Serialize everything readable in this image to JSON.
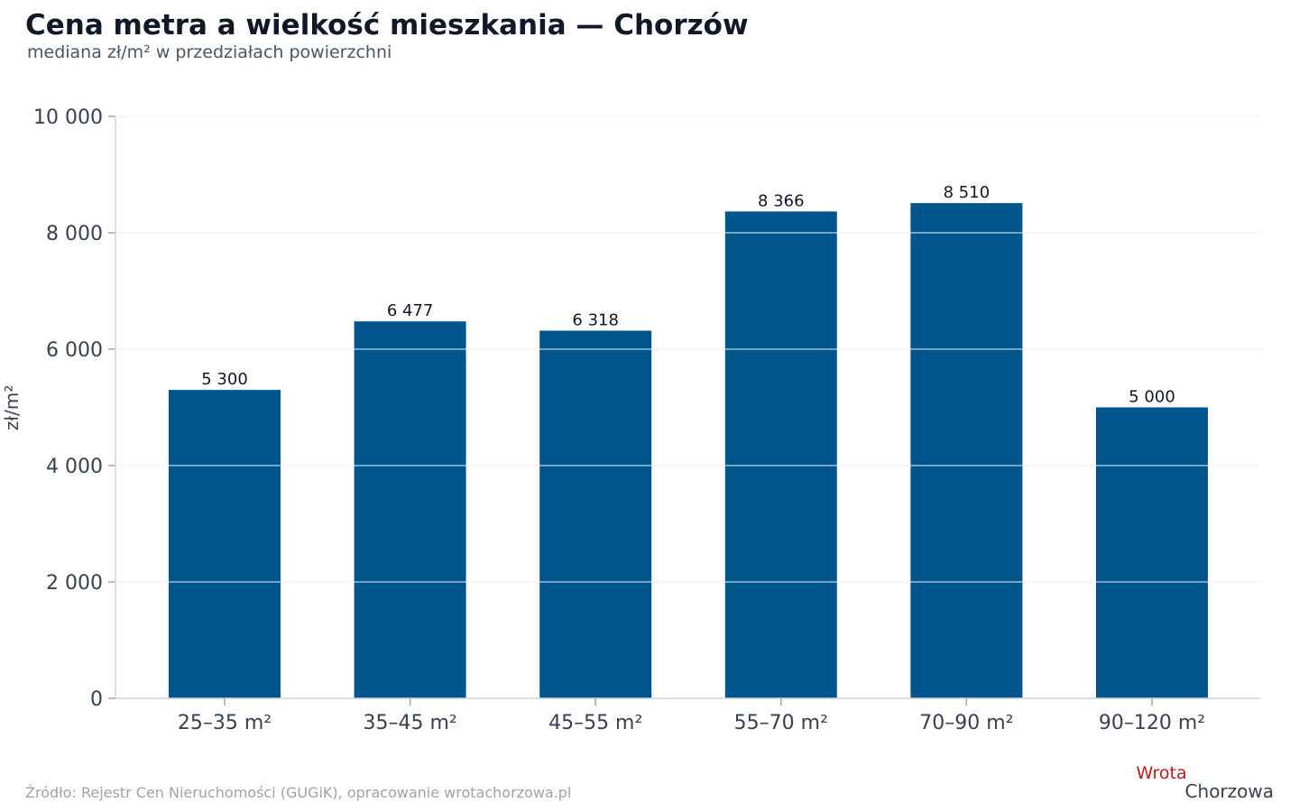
{
  "chart_data": {
    "type": "bar",
    "title": "Cena metra a wielkość mieszkania — Chorzów",
    "subtitle": "mediana zł/m² w przedziałach powierzchni",
    "xlabel": "",
    "ylabel": "zł/m²",
    "categories": [
      "25–35 m²",
      "35–45 m²",
      "45–55 m²",
      "55–70 m²",
      "70–90 m²",
      "90–120 m²"
    ],
    "values": [
      5300,
      6477,
      6318,
      8366,
      8510,
      5000
    ],
    "value_labels": [
      "5 300",
      "6 477",
      "6 318",
      "8 366",
      "8 510",
      "5 000"
    ],
    "ylim": [
      0,
      10000
    ],
    "yticks": [
      0,
      2000,
      4000,
      6000,
      8000,
      10000
    ],
    "ytick_labels": [
      "0",
      "2 000",
      "4 000",
      "6 000",
      "8 000",
      "10 000"
    ],
    "grid": true,
    "bar_color": "#00558c"
  },
  "footer": {
    "source": "Źródło: Rejestr Cen Nieruchomości (GUGiK), opracowanie wrotachorzowa.pl",
    "logo_top": "Wrota",
    "logo_bottom": "Chorzowa"
  }
}
